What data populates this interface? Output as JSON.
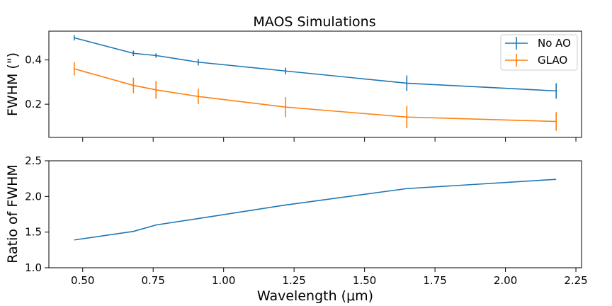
{
  "chart_data": [
    {
      "type": "line",
      "title": "MAOS Simulations",
      "xlabel": "",
      "ylabel": "FWHM (\")",
      "x": [
        0.47,
        0.68,
        0.76,
        0.91,
        1.22,
        1.65,
        2.18
      ],
      "xlim": [
        0.38,
        2.27
      ],
      "ylim": [
        0.05,
        0.53
      ],
      "yticks": [
        0.2,
        0.4
      ],
      "ytick_labels": [
        "0.2",
        "0.4"
      ],
      "legend_placement": "top-right",
      "series": [
        {
          "name": "No AO",
          "color": "#1f77b4",
          "values": [
            0.5,
            0.43,
            0.42,
            0.39,
            0.35,
            0.295,
            0.26
          ],
          "errors": [
            0.012,
            0.012,
            0.01,
            0.015,
            0.015,
            0.035,
            0.035
          ]
        },
        {
          "name": "GLAO",
          "color": "#ff7f0e",
          "values": [
            0.36,
            0.285,
            0.265,
            0.235,
            0.187,
            0.142,
            0.122
          ],
          "errors": [
            0.03,
            0.035,
            0.04,
            0.035,
            0.045,
            0.05,
            0.042
          ]
        }
      ]
    },
    {
      "type": "line",
      "title": "",
      "xlabel": "Wavelength (μm)",
      "ylabel": "Ratio of FWHM",
      "x": [
        0.47,
        0.68,
        0.76,
        0.91,
        1.22,
        1.65,
        2.18
      ],
      "xlim": [
        0.38,
        2.27
      ],
      "ylim": [
        1.0,
        2.5
      ],
      "xticks": [
        0.5,
        0.75,
        1.0,
        1.25,
        1.5,
        1.75,
        2.0,
        2.25
      ],
      "xtick_labels": [
        "0.50",
        "0.75",
        "1.00",
        "1.25",
        "1.50",
        "1.75",
        "2.00",
        "2.25"
      ],
      "yticks": [
        1.0,
        1.5,
        2.0,
        2.5
      ],
      "ytick_labels": [
        "1.0",
        "1.5",
        "2.0",
        "2.5"
      ],
      "series": [
        {
          "color": "#1f77b4",
          "values": [
            1.39,
            1.51,
            1.6,
            1.69,
            1.88,
            2.11,
            2.24
          ]
        }
      ]
    }
  ]
}
